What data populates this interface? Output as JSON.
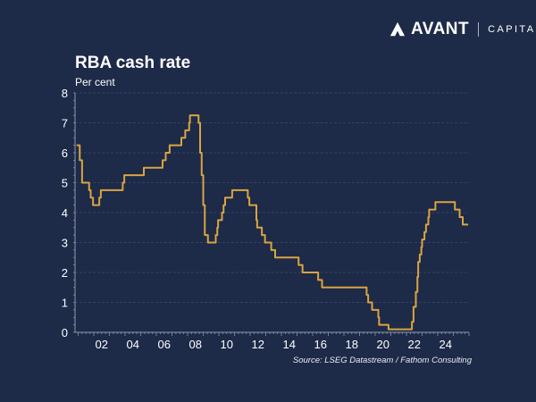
{
  "brand": {
    "name": "AVANT",
    "suffix": "CAPITAL"
  },
  "chart_data": {
    "type": "line",
    "title": "RBA cash rate",
    "ylabel": "Per cent",
    "xlabel": "",
    "source": "Source: LSEG Datastream / Fathom Consulting",
    "ylim": [
      0,
      8
    ],
    "xlim": [
      2000.8,
      2026.0
    ],
    "yticks": [
      0,
      1,
      2,
      3,
      4,
      5,
      6,
      7,
      8
    ],
    "yticklabels": [
      "0",
      "1",
      "2",
      "3",
      "4",
      "5",
      "6",
      "7",
      "8"
    ],
    "xticks": [
      2002,
      2004,
      2006,
      2008,
      2010,
      2012,
      2014,
      2016,
      2018,
      2020,
      2022,
      2024
    ],
    "xticklabels": [
      "02",
      "04",
      "06",
      "08",
      "10",
      "12",
      "14",
      "16",
      "18",
      "20",
      "22",
      "24"
    ],
    "grid": true,
    "line_color": "#d9a441",
    "series": [
      {
        "name": "RBA cash rate",
        "step": true,
        "x": [
          2000.9,
          2001.1,
          2001.25,
          2001.7,
          2001.8,
          2001.95,
          2002.35,
          2002.45,
          2003.85,
          2003.95,
          2005.2,
          2006.4,
          2006.6,
          2006.85,
          2007.6,
          2007.85,
          2008.1,
          2008.15,
          2008.7,
          2008.8,
          2008.9,
          2009.0,
          2009.1,
          2009.3,
          2009.8,
          2009.9,
          2009.95,
          2010.2,
          2010.3,
          2010.4,
          2010.85,
          2011.85,
          2011.95,
          2012.4,
          2012.45,
          2012.75,
          2012.95,
          2013.35,
          2013.6,
          2015.1,
          2015.35,
          2016.35,
          2016.6,
          2019.45,
          2019.55,
          2019.8,
          2020.2,
          2020.25,
          2020.85,
          2022.35,
          2022.45,
          2022.6,
          2022.7,
          2022.75,
          2022.85,
          2022.95,
          2023.0,
          2023.15,
          2023.25,
          2023.4,
          2023.45,
          2023.85,
          2025.1,
          2025.4,
          2025.6,
          2025.95
        ],
        "values": [
          6.25,
          5.75,
          5.0,
          4.75,
          4.5,
          4.25,
          4.5,
          4.75,
          5.0,
          5.25,
          5.5,
          5.75,
          6.0,
          6.25,
          6.5,
          6.75,
          7.0,
          7.25,
          7.0,
          6.0,
          5.25,
          4.25,
          3.25,
          3.0,
          3.25,
          3.5,
          3.75,
          4.0,
          4.25,
          4.5,
          4.75,
          4.5,
          4.25,
          3.75,
          3.5,
          3.25,
          3.0,
          2.75,
          2.5,
          2.25,
          2.0,
          1.75,
          1.5,
          1.25,
          1.0,
          0.75,
          0.5,
          0.25,
          0.1,
          0.35,
          0.85,
          1.35,
          1.85,
          2.35,
          2.6,
          2.85,
          3.1,
          3.35,
          3.6,
          3.85,
          4.1,
          4.35,
          4.1,
          3.85,
          3.6,
          3.6
        ]
      }
    ]
  }
}
